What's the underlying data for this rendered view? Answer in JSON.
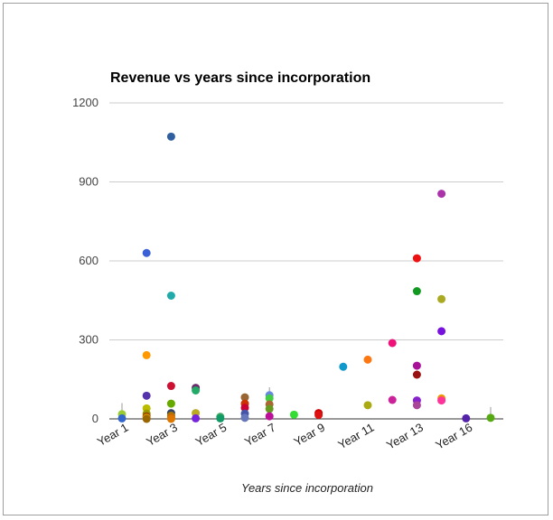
{
  "chart_data": {
    "type": "scatter",
    "title": "Revenue vs years since incorporation",
    "xlabel": "Years since incorporation",
    "ylabel": "",
    "ylim": [
      0,
      1200
    ],
    "yticks": [
      "0",
      "300",
      "600",
      "900",
      "1200"
    ],
    "ytick_values": [
      0,
      300,
      600,
      900,
      1200
    ],
    "categories": [
      "Year 1",
      "Year 2",
      "Year 3",
      "Year 4",
      "Year 5",
      "Year 6",
      "Year 7",
      "Year 8",
      "Year 9",
      "Year 10",
      "Year 11",
      "Year 12",
      "Year 13",
      "Year 14",
      "Year 16",
      "Year 17"
    ],
    "visible_tick_labels": [
      "Year 1",
      "Year 3",
      "Year 5",
      "Year 7",
      "Year 9",
      "Year 11",
      "Year 13",
      "Year 16"
    ],
    "grid": true,
    "legend": "none",
    "error_bars": [
      {
        "category": "Year 1",
        "low": 0,
        "high": 60
      },
      {
        "category": "Year 7",
        "low": 0,
        "high": 120
      },
      {
        "category": "Year 17",
        "low": 0,
        "high": 45
      }
    ],
    "points": [
      {
        "category": "Year 1",
        "y": 18,
        "color": "#99cc33"
      },
      {
        "category": "Year 1",
        "y": 2,
        "color": "#3366cc"
      },
      {
        "category": "Year 2",
        "y": 630,
        "color": "#3b5fd4"
      },
      {
        "category": "Year 2",
        "y": 242,
        "color": "#ff9900"
      },
      {
        "category": "Year 2",
        "y": 88,
        "color": "#5533aa"
      },
      {
        "category": "Year 2",
        "y": 40,
        "color": "#bbbb00"
      },
      {
        "category": "Year 2",
        "y": 20,
        "color": "#999900"
      },
      {
        "category": "Year 2",
        "y": 10,
        "color": "#994400"
      },
      {
        "category": "Year 2",
        "y": 4,
        "color": "#e0a000"
      },
      {
        "category": "Year 2",
        "y": 0,
        "color": "#996600"
      },
      {
        "category": "Year 3",
        "y": 1072,
        "color": "#2f5f9f"
      },
      {
        "category": "Year 3",
        "y": 468,
        "color": "#22aaaa"
      },
      {
        "category": "Year 3",
        "y": 125,
        "color": "#cc1133"
      },
      {
        "category": "Year 3",
        "y": 58,
        "color": "#66aa00"
      },
      {
        "category": "Year 3",
        "y": 22,
        "color": "#334466"
      },
      {
        "category": "Year 3",
        "y": 12,
        "color": "#aa7700"
      },
      {
        "category": "Year 3",
        "y": 5,
        "color": "#cc6600"
      },
      {
        "category": "Year 3",
        "y": 0,
        "color": "#dd7700"
      },
      {
        "category": "Year 4",
        "y": 118,
        "color": "#6b2a6b"
      },
      {
        "category": "Year 4",
        "y": 108,
        "color": "#22aa66"
      },
      {
        "category": "Year 4",
        "y": 22,
        "color": "#bbaa22"
      },
      {
        "category": "Year 4",
        "y": 2,
        "color": "#7722dd"
      },
      {
        "category": "Year 5",
        "y": 8,
        "color": "#44aa66"
      },
      {
        "category": "Year 5",
        "y": 2,
        "color": "#119966"
      },
      {
        "category": "Year 6",
        "y": 82,
        "color": "#996633"
      },
      {
        "category": "Year 6",
        "y": 58,
        "color": "#cc3300"
      },
      {
        "category": "Year 6",
        "y": 42,
        "color": "#cc0033"
      },
      {
        "category": "Year 6",
        "y": 20,
        "color": "#4455aa"
      },
      {
        "category": "Year 6",
        "y": 4,
        "color": "#6677bb"
      },
      {
        "category": "Year 7",
        "y": 90,
        "color": "#6688dd"
      },
      {
        "category": "Year 7",
        "y": 78,
        "color": "#44cc44"
      },
      {
        "category": "Year 7",
        "y": 55,
        "color": "#aa6633"
      },
      {
        "category": "Year 7",
        "y": 38,
        "color": "#669922"
      },
      {
        "category": "Year 7",
        "y": 10,
        "color": "#bb1199"
      },
      {
        "category": "Year 8",
        "y": 16,
        "color": "#33dd33"
      },
      {
        "category": "Year 9",
        "y": 22,
        "color": "#cc0000"
      },
      {
        "category": "Year 9",
        "y": 15,
        "color": "#dd1111"
      },
      {
        "category": "Year 10",
        "y": 198,
        "color": "#1199cc"
      },
      {
        "category": "Year 11",
        "y": 225,
        "color": "#ff7711"
      },
      {
        "category": "Year 11",
        "y": 52,
        "color": "#aaaa11"
      },
      {
        "category": "Year 12",
        "y": 288,
        "color": "#ee1177"
      },
      {
        "category": "Year 12",
        "y": 72,
        "color": "#cc2299"
      },
      {
        "category": "Year 13",
        "y": 610,
        "color": "#ee1111"
      },
      {
        "category": "Year 13",
        "y": 485,
        "color": "#119922"
      },
      {
        "category": "Year 13",
        "y": 202,
        "color": "#aa1199"
      },
      {
        "category": "Year 13",
        "y": 168,
        "color": "#991111"
      },
      {
        "category": "Year 13",
        "y": 70,
        "color": "#8822cc"
      },
      {
        "category": "Year 13",
        "y": 52,
        "color": "#aa4499"
      },
      {
        "category": "Year 14",
        "y": 855,
        "color": "#aa33aa"
      },
      {
        "category": "Year 14",
        "y": 455,
        "color": "#aaaa22"
      },
      {
        "category": "Year 14",
        "y": 333,
        "color": "#7711dd"
      },
      {
        "category": "Year 14",
        "y": 78,
        "color": "#ee9900"
      },
      {
        "category": "Year 14",
        "y": 70,
        "color": "#ff3399"
      },
      {
        "category": "Year 16",
        "y": 2,
        "color": "#5522aa"
      },
      {
        "category": "Year 17",
        "y": 4,
        "color": "#55aa11"
      }
    ]
  }
}
